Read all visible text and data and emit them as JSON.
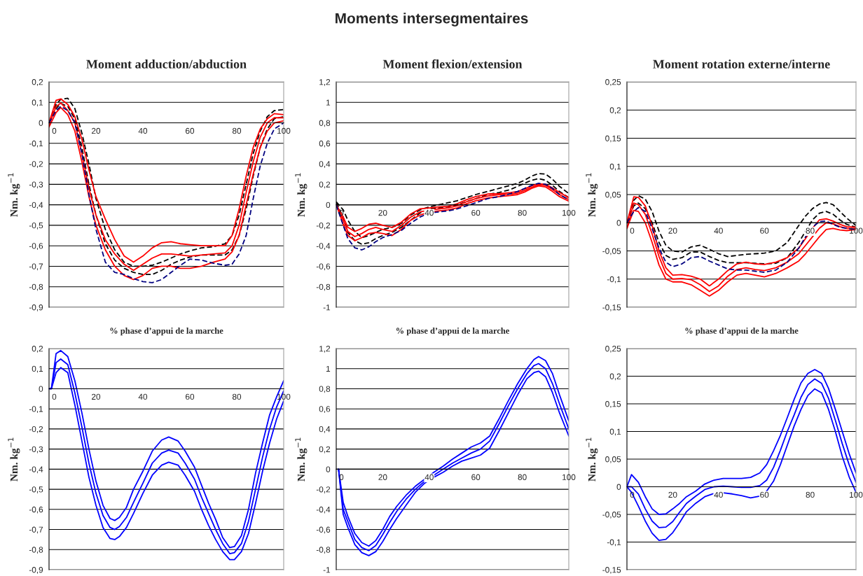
{
  "chart_data": [
    {
      "type": "line",
      "title": "Moment adduction/abduction",
      "xlabel": "% phase d’appui de la marche",
      "ylabel": "Nm. kg$^{−1}$",
      "annotations": [
        "Moments intersegmentaires"
      ],
      "grid": "y",
      "x": [
        0,
        3,
        5,
        8,
        11,
        14,
        17,
        20,
        24,
        28,
        32,
        36,
        40,
        44,
        48,
        52,
        56,
        60,
        65,
        70,
        75,
        78,
        81,
        84,
        87,
        90,
        93,
        96,
        100
      ],
      "xlim": [
        0,
        100
      ],
      "xticks": [
        0,
        20,
        40,
        60,
        80,
        100
      ],
      "ylim": [
        -0.9,
        0.2
      ],
      "yticks": [
        {
          "value": -0.9,
          "label": "-0,9"
        },
        {
          "value": -0.8,
          "label": "-0,8"
        },
        {
          "value": -0.7,
          "label": "-0,7"
        },
        {
          "value": -0.6,
          "label": "-0,6"
        },
        {
          "value": -0.5,
          "label": "-0,5"
        },
        {
          "value": -0.4,
          "label": "-0,4"
        },
        {
          "value": -0.3,
          "label": "-0,3"
        },
        {
          "value": -0.2,
          "label": "-0,2"
        },
        {
          "value": -0.1,
          "label": "-0,1"
        },
        0,
        {
          "value": 0.1,
          "label": "0,1"
        },
        {
          "value": 0.2,
          "label": "0,2"
        }
      ],
      "series": [
        {
          "color": "#000000",
          "line_style": "dashed",
          "values": [
            0.0,
            0.09,
            0.115,
            0.12,
            0.07,
            -0.05,
            -0.2,
            -0.37,
            -0.52,
            -0.62,
            -0.68,
            -0.7,
            -0.7,
            -0.695,
            -0.68,
            -0.66,
            -0.64,
            -0.625,
            -0.61,
            -0.605,
            -0.59,
            -0.55,
            -0.45,
            -0.3,
            -0.15,
            -0.04,
            0.03,
            0.06,
            0.065
          ]
        },
        {
          "color": "#000000",
          "line_style": "dashed",
          "values": [
            0.0,
            0.07,
            0.095,
            0.08,
            0.02,
            -0.12,
            -0.3,
            -0.45,
            -0.59,
            -0.67,
            -0.71,
            -0.73,
            -0.74,
            -0.74,
            -0.72,
            -0.69,
            -0.67,
            -0.655,
            -0.645,
            -0.645,
            -0.645,
            -0.62,
            -0.55,
            -0.42,
            -0.26,
            -0.12,
            -0.03,
            0.02,
            0.03
          ]
        },
        {
          "color": "#ff0000",
          "line_style": "solid",
          "values": [
            0.0,
            0.11,
            0.117,
            0.09,
            0.03,
            -0.08,
            -0.23,
            -0.36,
            -0.47,
            -0.57,
            -0.65,
            -0.68,
            -0.65,
            -0.61,
            -0.585,
            -0.58,
            -0.59,
            -0.595,
            -0.6,
            -0.6,
            -0.6,
            -0.55,
            -0.42,
            -0.26,
            -0.12,
            -0.03,
            0.02,
            0.045,
            0.04
          ]
        },
        {
          "color": "#ff0000",
          "line_style": "solid",
          "values": [
            -0.02,
            0.05,
            0.075,
            0.04,
            -0.04,
            -0.19,
            -0.36,
            -0.5,
            -0.62,
            -0.7,
            -0.745,
            -0.765,
            -0.745,
            -0.71,
            -0.7,
            -0.7,
            -0.71,
            -0.71,
            -0.7,
            -0.68,
            -0.665,
            -0.63,
            -0.55,
            -0.4,
            -0.25,
            -0.12,
            -0.04,
            0.0,
            0.01
          ]
        },
        {
          "color": "#ff0000",
          "line_style": "solid",
          "values": [
            -0.01,
            0.08,
            0.097,
            0.06,
            0.0,
            -0.15,
            -0.32,
            -0.45,
            -0.57,
            -0.64,
            -0.69,
            -0.72,
            -0.69,
            -0.66,
            -0.64,
            -0.64,
            -0.645,
            -0.65,
            -0.645,
            -0.64,
            -0.635,
            -0.6,
            -0.5,
            -0.34,
            -0.19,
            -0.07,
            0.0,
            0.025,
            0.025
          ]
        },
        {
          "color": "#000080",
          "line_style": "dashed",
          "values": [
            0.0,
            0.06,
            0.08,
            0.06,
            0.0,
            -0.15,
            -0.35,
            -0.52,
            -0.68,
            -0.73,
            -0.74,
            -0.76,
            -0.775,
            -0.78,
            -0.765,
            -0.73,
            -0.695,
            -0.665,
            -0.67,
            -0.685,
            -0.695,
            -0.69,
            -0.64,
            -0.55,
            -0.37,
            -0.21,
            -0.1,
            -0.03,
            0.0
          ]
        }
      ]
    },
    {
      "type": "line",
      "title": "Moment flexion/extension",
      "xlabel": "% phase d’appui de la marche",
      "ylabel": "Nm. kg$^{−1}$",
      "grid": "y",
      "x": [
        0,
        3,
        5,
        8,
        11,
        14,
        17,
        20,
        24,
        28,
        32,
        36,
        40,
        44,
        48,
        52,
        56,
        60,
        65,
        70,
        75,
        78,
        81,
        84,
        87,
        90,
        93,
        96,
        100
      ],
      "xlim": [
        0,
        100
      ],
      "xticks": [
        0,
        20,
        40,
        60,
        80,
        100
      ],
      "ylim": [
        -1,
        1.2
      ],
      "yticks": [
        -1,
        {
          "value": -0.8,
          "label": "-0,8"
        },
        {
          "value": -0.6,
          "label": "-0,6"
        },
        {
          "value": -0.4,
          "label": "-0,4"
        },
        {
          "value": -0.2,
          "label": "-0,2"
        },
        0,
        {
          "value": 0.2,
          "label": "0,2"
        },
        {
          "value": 0.4,
          "label": "0,4"
        },
        {
          "value": 0.6,
          "label": "0,6"
        },
        {
          "value": 0.8,
          "label": "0,8"
        },
        1,
        {
          "value": 1.2,
          "label": "1,2"
        }
      ],
      "series": [
        {
          "color": "#000000",
          "line_style": "dashed",
          "values": [
            0.03,
            -0.05,
            -0.15,
            -0.26,
            -0.32,
            -0.3,
            -0.27,
            -0.24,
            -0.22,
            -0.18,
            -0.1,
            -0.05,
            -0.02,
            0.0,
            0.02,
            0.04,
            0.07,
            0.1,
            0.13,
            0.16,
            0.19,
            0.21,
            0.24,
            0.28,
            0.305,
            0.3,
            0.25,
            0.18,
            0.11
          ]
        },
        {
          "color": "#000000",
          "line_style": "dashed",
          "values": [
            0.02,
            -0.12,
            -0.27,
            -0.35,
            -0.385,
            -0.37,
            -0.33,
            -0.3,
            -0.27,
            -0.22,
            -0.15,
            -0.08,
            -0.04,
            -0.03,
            -0.02,
            0.0,
            0.03,
            0.06,
            0.1,
            0.12,
            0.15,
            0.18,
            0.21,
            0.24,
            0.255,
            0.24,
            0.19,
            0.13,
            0.07
          ]
        },
        {
          "color": "#ff0000",
          "line_style": "solid",
          "values": [
            0.0,
            -0.12,
            -0.22,
            -0.26,
            -0.23,
            -0.19,
            -0.18,
            -0.2,
            -0.22,
            -0.17,
            -0.09,
            -0.04,
            -0.03,
            -0.02,
            -0.015,
            0.01,
            0.05,
            0.08,
            0.105,
            0.11,
            0.12,
            0.13,
            0.155,
            0.185,
            0.205,
            0.2,
            0.165,
            0.12,
            0.07
          ]
        },
        {
          "color": "#ff0000",
          "line_style": "solid",
          "values": [
            0.0,
            -0.19,
            -0.3,
            -0.35,
            -0.32,
            -0.28,
            -0.27,
            -0.28,
            -0.3,
            -0.24,
            -0.15,
            -0.1,
            -0.07,
            -0.06,
            -0.05,
            -0.03,
            0.01,
            0.04,
            0.065,
            0.08,
            0.09,
            0.1,
            0.125,
            0.16,
            0.185,
            0.175,
            0.13,
            0.08,
            0.035
          ]
        },
        {
          "color": "#ff0000",
          "line_style": "solid",
          "values": [
            0.0,
            -0.15,
            -0.26,
            -0.31,
            -0.28,
            -0.24,
            -0.22,
            -0.24,
            -0.26,
            -0.2,
            -0.12,
            -0.07,
            -0.05,
            -0.04,
            -0.03,
            -0.01,
            0.03,
            0.06,
            0.085,
            0.1,
            0.105,
            0.115,
            0.14,
            0.17,
            0.195,
            0.19,
            0.15,
            0.1,
            0.05
          ]
        },
        {
          "color": "#000080",
          "line_style": "dashed",
          "values": [
            0.0,
            -0.2,
            -0.33,
            -0.42,
            -0.44,
            -0.41,
            -0.36,
            -0.32,
            -0.29,
            -0.25,
            -0.18,
            -0.12,
            -0.08,
            -0.07,
            -0.06,
            -0.04,
            -0.01,
            0.02,
            0.06,
            0.08,
            0.11,
            0.13,
            0.16,
            0.19,
            0.21,
            0.2,
            0.16,
            0.1,
            0.05
          ]
        }
      ]
    },
    {
      "type": "line",
      "title": "Moment rotation externe/interne",
      "xlabel": "% phase d’appui de la marche",
      "ylabel": "Nm. kg$^{−1}$",
      "grid": "y",
      "x": [
        0,
        3,
        5,
        8,
        11,
        14,
        17,
        20,
        24,
        28,
        32,
        36,
        40,
        44,
        48,
        52,
        56,
        60,
        65,
        70,
        75,
        78,
        81,
        84,
        87,
        90,
        93,
        96,
        100
      ],
      "xlim": [
        0,
        100
      ],
      "xticks": [
        0,
        20,
        40,
        60,
        80,
        100
      ],
      "ylim": [
        -0.15,
        0.25
      ],
      "yticks": [
        {
          "value": -0.15,
          "label": "-0,15"
        },
        {
          "value": -0.1,
          "label": "-0,1"
        },
        {
          "value": -0.05,
          "label": "-0,05"
        },
        0,
        {
          "value": 0.05,
          "label": "0,05"
        },
        {
          "value": 0.1,
          "label": "0,1"
        },
        {
          "value": 0.15,
          "label": "0,15"
        },
        {
          "value": 0.2,
          "label": "0,2"
        },
        {
          "value": 0.25,
          "label": "0,25"
        }
      ],
      "series": [
        {
          "color": "#000000",
          "line_style": "dashed",
          "values": [
            0.0,
            0.04,
            0.048,
            0.042,
            0.02,
            -0.015,
            -0.04,
            -0.05,
            -0.052,
            -0.043,
            -0.04,
            -0.047,
            -0.055,
            -0.06,
            -0.058,
            -0.056,
            -0.055,
            -0.054,
            -0.05,
            -0.035,
            -0.005,
            0.012,
            0.025,
            0.033,
            0.036,
            0.032,
            0.02,
            0.008,
            -0.005
          ]
        },
        {
          "color": "#000000",
          "line_style": "dashed",
          "values": [
            0.0,
            0.03,
            0.035,
            0.025,
            0.0,
            -0.035,
            -0.058,
            -0.065,
            -0.062,
            -0.052,
            -0.052,
            -0.06,
            -0.067,
            -0.071,
            -0.071,
            -0.071,
            -0.072,
            -0.073,
            -0.072,
            -0.062,
            -0.035,
            -0.015,
            0.005,
            0.017,
            0.02,
            0.015,
            0.005,
            -0.003,
            -0.008
          ]
        },
        {
          "color": "#ff0000",
          "line_style": "solid",
          "values": [
            0.0,
            0.046,
            0.045,
            0.03,
            -0.005,
            -0.05,
            -0.08,
            -0.093,
            -0.092,
            -0.095,
            -0.1,
            -0.112,
            -0.1,
            -0.085,
            -0.073,
            -0.07,
            -0.073,
            -0.074,
            -0.07,
            -0.062,
            -0.045,
            -0.028,
            -0.01,
            0.005,
            0.007,
            0.003,
            -0.003,
            -0.007,
            -0.008
          ]
        },
        {
          "color": "#ff0000",
          "line_style": "solid",
          "values": [
            -0.01,
            0.022,
            0.02,
            0.0,
            -0.035,
            -0.075,
            -0.1,
            -0.105,
            -0.105,
            -0.11,
            -0.12,
            -0.13,
            -0.12,
            -0.105,
            -0.093,
            -0.09,
            -0.093,
            -0.096,
            -0.09,
            -0.08,
            -0.068,
            -0.055,
            -0.04,
            -0.025,
            -0.012,
            -0.01,
            -0.013,
            -0.014,
            -0.012
          ]
        },
        {
          "color": "#ff0000",
          "line_style": "solid",
          "values": [
            -0.01,
            0.035,
            0.032,
            0.015,
            -0.02,
            -0.06,
            -0.09,
            -0.1,
            -0.099,
            -0.101,
            -0.11,
            -0.122,
            -0.112,
            -0.095,
            -0.083,
            -0.08,
            -0.083,
            -0.085,
            -0.08,
            -0.07,
            -0.055,
            -0.04,
            -0.025,
            -0.01,
            0.0,
            -0.002,
            -0.007,
            -0.01,
            -0.01
          ]
        },
        {
          "color": "#000080",
          "line_style": "dashed",
          "values": [
            0.0,
            0.02,
            0.027,
            0.02,
            -0.01,
            -0.045,
            -0.07,
            -0.078,
            -0.073,
            -0.062,
            -0.06,
            -0.068,
            -0.075,
            -0.082,
            -0.084,
            -0.084,
            -0.086,
            -0.088,
            -0.084,
            -0.07,
            -0.045,
            -0.025,
            -0.008,
            0.002,
            0.003,
            -0.003,
            -0.008,
            -0.01,
            -0.012
          ]
        }
      ]
    },
    {
      "type": "line",
      "ylabel": "Nm. kg$^{−1}$",
      "grid": "y",
      "x": [
        0,
        1,
        3,
        5,
        8,
        11,
        14,
        17,
        20,
        23,
        26,
        28,
        30,
        33,
        36,
        40,
        44,
        48,
        51,
        55,
        58,
        62,
        65,
        68,
        71,
        74,
        77,
        79,
        82,
        85,
        88,
        91,
        94,
        97,
        100
      ],
      "xlim": [
        0,
        100
      ],
      "xticks": [
        0,
        20,
        40,
        60,
        80,
        100
      ],
      "ylim": [
        -0.9,
        0.2
      ],
      "yticks": [
        {
          "value": -0.9,
          "label": "-0,9"
        },
        {
          "value": -0.8,
          "label": "-0,8"
        },
        {
          "value": -0.7,
          "label": "-0,7"
        },
        {
          "value": -0.6,
          "label": "-0,6"
        },
        {
          "value": -0.5,
          "label": "-0,5"
        },
        {
          "value": -0.4,
          "label": "-0,4"
        },
        {
          "value": -0.3,
          "label": "-0,3"
        },
        {
          "value": -0.2,
          "label": "-0,2"
        },
        {
          "value": -0.1,
          "label": "-0,1"
        },
        0,
        {
          "value": 0.1,
          "label": "0,1"
        },
        {
          "value": 0.2,
          "label": "0,2"
        }
      ],
      "series": [
        {
          "color": "#0000ff",
          "line_style": "solid",
          "values": [
            0.0,
            0.0,
            0.13,
            0.148,
            0.12,
            -0.02,
            -0.19,
            -0.37,
            -0.52,
            -0.63,
            -0.69,
            -0.7,
            -0.685,
            -0.64,
            -0.565,
            -0.47,
            -0.37,
            -0.32,
            -0.305,
            -0.32,
            -0.37,
            -0.45,
            -0.54,
            -0.62,
            -0.7,
            -0.77,
            -0.82,
            -0.815,
            -0.77,
            -0.66,
            -0.5,
            -0.34,
            -0.2,
            -0.09,
            -0.01
          ]
        },
        {
          "color": "#0000ff",
          "line_style": "solid",
          "values": [
            0.0,
            0.0,
            0.175,
            0.19,
            0.16,
            0.04,
            -0.12,
            -0.3,
            -0.46,
            -0.58,
            -0.645,
            -0.655,
            -0.64,
            -0.59,
            -0.5,
            -0.41,
            -0.31,
            -0.255,
            -0.24,
            -0.26,
            -0.31,
            -0.39,
            -0.48,
            -0.57,
            -0.65,
            -0.74,
            -0.79,
            -0.785,
            -0.73,
            -0.6,
            -0.42,
            -0.27,
            -0.13,
            -0.04,
            0.04
          ]
        },
        {
          "color": "#0000ff",
          "line_style": "solid",
          "values": [
            0.0,
            0.0,
            0.08,
            0.105,
            0.08,
            -0.08,
            -0.26,
            -0.44,
            -0.58,
            -0.69,
            -0.745,
            -0.75,
            -0.735,
            -0.69,
            -0.62,
            -0.52,
            -0.43,
            -0.38,
            -0.365,
            -0.38,
            -0.43,
            -0.51,
            -0.6,
            -0.68,
            -0.75,
            -0.81,
            -0.85,
            -0.85,
            -0.81,
            -0.72,
            -0.57,
            -0.41,
            -0.27,
            -0.15,
            -0.06
          ]
        }
      ]
    },
    {
      "type": "line",
      "ylabel": "Nm. kg$^{−1}$",
      "grid": "y",
      "x": [
        1,
        3,
        5,
        8,
        11,
        14,
        17,
        20,
        23,
        26,
        30,
        34,
        38,
        42,
        46,
        50,
        54,
        58,
        62,
        66,
        70,
        74,
        78,
        82,
        85,
        87,
        90,
        93,
        96,
        100
      ],
      "xlim": [
        0,
        100
      ],
      "xticks": [
        0,
        20,
        40,
        60,
        80,
        100
      ],
      "ylim": [
        -1,
        1.2
      ],
      "yticks": [
        -1,
        {
          "value": -0.8,
          "label": "-0,8"
        },
        {
          "value": -0.6,
          "label": "-0,6"
        },
        {
          "value": -0.4,
          "label": "-0,4"
        },
        {
          "value": -0.2,
          "label": "-0,2"
        },
        0,
        {
          "value": 0.2,
          "label": "0,2"
        },
        {
          "value": 0.4,
          "label": "0,4"
        },
        {
          "value": 0.6,
          "label": "0,6"
        },
        {
          "value": 0.8,
          "label": "0,8"
        },
        1,
        {
          "value": 1.2,
          "label": "1,2"
        }
      ],
      "series": [
        {
          "color": "#0000ff",
          "line_style": "solid",
          "values": [
            0.0,
            -0.4,
            -0.52,
            -0.7,
            -0.78,
            -0.81,
            -0.76,
            -0.65,
            -0.53,
            -0.42,
            -0.3,
            -0.2,
            -0.12,
            -0.06,
            0.0,
            0.06,
            0.11,
            0.16,
            0.2,
            0.28,
            0.45,
            0.63,
            0.8,
            0.95,
            1.03,
            1.05,
            1.0,
            0.85,
            0.65,
            0.4
          ]
        },
        {
          "color": "#0000ff",
          "line_style": "solid",
          "values": [
            0.0,
            -0.33,
            -0.47,
            -0.64,
            -0.73,
            -0.765,
            -0.71,
            -0.6,
            -0.47,
            -0.37,
            -0.26,
            -0.17,
            -0.1,
            -0.03,
            0.03,
            0.1,
            0.16,
            0.22,
            0.26,
            0.33,
            0.5,
            0.68,
            0.85,
            1.0,
            1.09,
            1.12,
            1.08,
            0.95,
            0.74,
            0.48
          ]
        },
        {
          "color": "#0000ff",
          "line_style": "solid",
          "values": [
            0.0,
            -0.45,
            -0.58,
            -0.75,
            -0.83,
            -0.86,
            -0.82,
            -0.72,
            -0.6,
            -0.49,
            -0.36,
            -0.23,
            -0.14,
            -0.08,
            -0.03,
            0.03,
            0.08,
            0.11,
            0.14,
            0.21,
            0.38,
            0.56,
            0.74,
            0.9,
            0.96,
            0.975,
            0.92,
            0.76,
            0.56,
            0.33
          ]
        }
      ]
    },
    {
      "type": "line",
      "ylabel": "Nm. kg$^{−1}$",
      "grid": "y",
      "x": [
        0,
        2,
        5,
        8,
        11,
        14,
        17,
        20,
        23,
        26,
        30,
        34,
        38,
        42,
        46,
        50,
        54,
        58,
        61,
        64,
        67,
        70,
        73,
        76,
        79,
        82,
        85,
        88,
        91,
        94,
        97,
        100
      ],
      "xlim": [
        0,
        100
      ],
      "xticks": [
        0,
        20,
        40,
        60,
        80,
        100
      ],
      "ylim": [
        -0.15,
        0.25
      ],
      "yticks": [
        {
          "value": -0.15,
          "label": "-0,15"
        },
        {
          "value": -0.1,
          "label": "-0,1"
        },
        {
          "value": -0.05,
          "label": "-0,05"
        },
        0,
        {
          "value": 0.05,
          "label": "0,05"
        },
        {
          "value": 0.1,
          "label": "0,1"
        },
        {
          "value": 0.15,
          "label": "0,15"
        },
        {
          "value": 0.2,
          "label": "0,2"
        },
        {
          "value": 0.25,
          "label": "0,25"
        }
      ],
      "series": [
        {
          "color": "#0000ff",
          "line_style": "solid",
          "values": [
            0.0,
            0.0,
            -0.013,
            -0.04,
            -0.062,
            -0.074,
            -0.073,
            -0.063,
            -0.046,
            -0.03,
            -0.017,
            -0.005,
            0.0,
            0.001,
            0.0,
            -0.001,
            -0.001,
            0.002,
            0.012,
            0.035,
            0.066,
            0.1,
            0.13,
            0.162,
            0.185,
            0.195,
            0.187,
            0.16,
            0.12,
            0.078,
            0.04,
            0.008
          ]
        },
        {
          "color": "#0000ff",
          "line_style": "solid",
          "values": [
            0.0,
            0.022,
            0.008,
            -0.018,
            -0.04,
            -0.05,
            -0.049,
            -0.04,
            -0.03,
            -0.018,
            -0.008,
            0.005,
            0.012,
            0.015,
            0.015,
            0.015,
            0.017,
            0.025,
            0.04,
            0.065,
            0.093,
            0.125,
            0.158,
            0.188,
            0.205,
            0.212,
            0.205,
            0.178,
            0.14,
            0.1,
            0.06,
            0.025
          ]
        },
        {
          "color": "#0000ff",
          "line_style": "solid",
          "values": [
            0.0,
            -0.01,
            -0.035,
            -0.062,
            -0.084,
            -0.097,
            -0.095,
            -0.083,
            -0.065,
            -0.045,
            -0.03,
            -0.018,
            -0.012,
            -0.011,
            -0.013,
            -0.016,
            -0.02,
            -0.017,
            -0.008,
            0.01,
            0.04,
            0.075,
            0.11,
            0.14,
            0.165,
            0.177,
            0.17,
            0.14,
            0.1,
            0.055,
            0.018,
            -0.01
          ]
        }
      ]
    }
  ]
}
